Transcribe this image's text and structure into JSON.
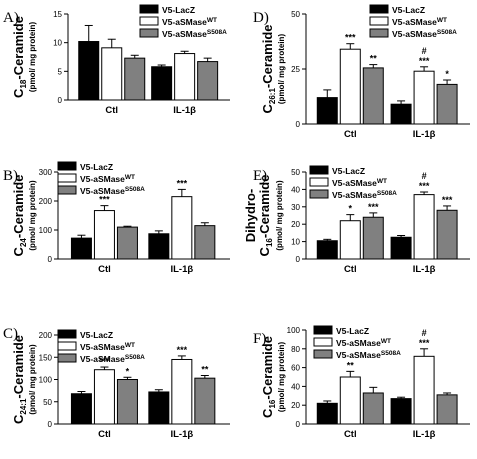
{
  "colors": {
    "lacz": "#000000",
    "wt": "#ffffff",
    "mut": "#808080"
  },
  "legend_labels": {
    "lacz": "V5-LacZ",
    "wt_base": "V5-aSMase",
    "wt_sup": "WT",
    "mut_base": "V5-aSMase",
    "mut_sup": "S508A"
  },
  "chart_data": [
    {
      "panel": "A)",
      "type": "bar",
      "ylabel_main": "C",
      "ylabel_sub": "18",
      "ylabel_rest": "-Ceramide",
      "ylabel_unit": "(pmol/ mg protein)",
      "categories": [
        "Ctl",
        "IL-1β"
      ],
      "ylim": [
        0,
        15
      ],
      "yticks": [
        "0",
        "5",
        "10",
        "15"
      ],
      "series": [
        {
          "name": "V5-LacZ",
          "values": [
            10.2,
            5.8
          ],
          "errors": [
            2.8,
            0.3
          ]
        },
        {
          "name": "V5-aSMaseWT",
          "values": [
            9.1,
            8.1
          ],
          "errors": [
            1.5,
            0.4
          ]
        },
        {
          "name": "V5-aSMaseS508A",
          "values": [
            7.3,
            6.7
          ],
          "errors": [
            0.5,
            0.6
          ]
        }
      ],
      "annotations": [
        [
          "",
          "",
          ""
        ],
        [
          "",
          "",
          ""
        ]
      ]
    },
    {
      "panel": "B)",
      "type": "bar",
      "ylabel_main": "C",
      "ylabel_sub": "24",
      "ylabel_rest": "-Ceramide",
      "ylabel_unit": "(pmol/ mg protein)",
      "categories": [
        "Ctl",
        "IL-1β"
      ],
      "ylim": [
        0,
        300
      ],
      "yticks": [
        "0",
        "100",
        "200",
        "300"
      ],
      "series": [
        {
          "name": "V5-LacZ",
          "values": [
            72,
            87
          ],
          "errors": [
            10,
            10
          ]
        },
        {
          "name": "V5-aSMaseWT",
          "values": [
            167,
            215
          ],
          "errors": [
            17,
            25
          ]
        },
        {
          "name": "V5-aSMaseS508A",
          "values": [
            110,
            115
          ],
          "errors": [
            3,
            10
          ]
        }
      ],
      "annotations": [
        [
          "",
          "***",
          ""
        ],
        [
          "",
          "***",
          ""
        ]
      ]
    },
    {
      "panel": "C)",
      "type": "bar",
      "ylabel_main": "C",
      "ylabel_sub": "24:1",
      "ylabel_rest": "-Ceramide",
      "ylabel_unit": "(pmol/ mg protein)",
      "categories": [
        "Ctl",
        "IL-1β"
      ],
      "ylim": [
        0,
        200
      ],
      "yticks": [
        "0",
        "50",
        "100",
        "150",
        "200"
      ],
      "series": [
        {
          "name": "V5-LacZ",
          "values": [
            68,
            72
          ],
          "errors": [
            5,
            5
          ]
        },
        {
          "name": "V5-aSMaseWT",
          "values": [
            122,
            145
          ],
          "errors": [
            6,
            8
          ]
        },
        {
          "name": "V5-aSMaseS508A",
          "values": [
            100,
            103
          ],
          "errors": [
            5,
            6
          ]
        }
      ],
      "annotations": [
        [
          "",
          "***",
          "*"
        ],
        [
          "",
          "***",
          "**"
        ]
      ]
    },
    {
      "panel": "D)",
      "type": "bar",
      "ylabel_main": "C",
      "ylabel_sub": "26:1",
      "ylabel_rest": "-Ceramide",
      "ylabel_unit": "(pmol/ mg protein)",
      "categories": [
        "Ctl",
        "IL-1β"
      ],
      "ylim": [
        0,
        50
      ],
      "yticks": [
        "0",
        "25",
        "50"
      ],
      "series": [
        {
          "name": "V5-LacZ",
          "values": [
            12,
            9
          ],
          "errors": [
            3.5,
            1.5
          ]
        },
        {
          "name": "V5-aSMaseWT",
          "values": [
            34,
            24
          ],
          "errors": [
            2.5,
            2.0
          ]
        },
        {
          "name": "V5-aSMaseS508A",
          "values": [
            25.5,
            18
          ],
          "errors": [
            1.5,
            2.0
          ]
        }
      ],
      "annotations": [
        [
          "",
          "***",
          "**"
        ],
        [
          "",
          "#\n***",
          "*"
        ]
      ]
    },
    {
      "panel": "E)",
      "type": "bar",
      "ylabel_main": "Dihydro-",
      "ylabel_pre": "C",
      "ylabel_sub": "16",
      "ylabel_rest": "-Ceramide",
      "ylabel_unit": "(pmol/ mg protein)",
      "categories": [
        "Ctl",
        "IL-1β"
      ],
      "ylim": [
        0,
        50
      ],
      "yticks": [
        "0",
        "10",
        "20",
        "30",
        "40",
        "50"
      ],
      "series": [
        {
          "name": "V5-LacZ",
          "values": [
            10.5,
            12.5
          ],
          "errors": [
            0.8,
            1.0
          ]
        },
        {
          "name": "V5-aSMaseWT",
          "values": [
            22,
            37
          ],
          "errors": [
            3.5,
            1.5
          ]
        },
        {
          "name": "V5-aSMaseS508A",
          "values": [
            24,
            28
          ],
          "errors": [
            2.5,
            2.5
          ]
        }
      ],
      "annotations": [
        [
          "",
          "*",
          "***"
        ],
        [
          "",
          "#\n***",
          "***"
        ]
      ]
    },
    {
      "panel": "F)",
      "type": "bar",
      "ylabel_main": "C",
      "ylabel_sub": "16",
      "ylabel_rest": "-Ceramide",
      "ylabel_unit": "(pmol/ mg protein)",
      "categories": [
        "Ctl",
        "IL-1β"
      ],
      "ylim": [
        0,
        100
      ],
      "yticks": [
        "0",
        "20",
        "40",
        "60",
        "80",
        "100"
      ],
      "series": [
        {
          "name": "V5-LacZ",
          "values": [
            22,
            27
          ],
          "errors": [
            2.5,
            1.5
          ]
        },
        {
          "name": "V5-aSMaseWT",
          "values": [
            50,
            72
          ],
          "errors": [
            6,
            8
          ]
        },
        {
          "name": "V5-aSMaseS508A",
          "values": [
            33,
            31
          ],
          "errors": [
            6,
            2
          ]
        }
      ],
      "annotations": [
        [
          "",
          "**",
          ""
        ],
        [
          "",
          "#\n***",
          ""
        ]
      ]
    }
  ]
}
